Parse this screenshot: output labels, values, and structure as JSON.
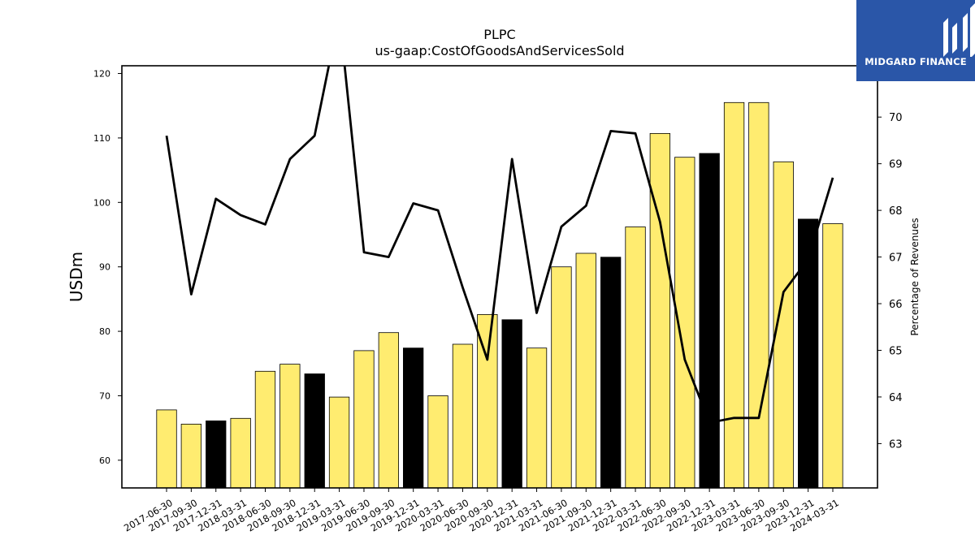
{
  "logo": {
    "text": "MIDGARD FINANCE"
  },
  "chart_data": {
    "type": "bar",
    "title": "PLPC",
    "subtitle": "us-gaap:CostOfGoodsAndServicesSold",
    "ylabel": "USDm",
    "y2label": "Percentage of Revenues",
    "ylim": [
      55.7,
      121.2
    ],
    "y2lim": [
      62.05,
      71.1
    ],
    "yticks": [
      60,
      70,
      80,
      90,
      100,
      110,
      120
    ],
    "y2ticks": [
      63,
      64,
      65,
      66,
      67,
      68,
      69,
      70
    ],
    "categories": [
      "2017-06-30",
      "2017-09-30",
      "2017-12-31",
      "2018-03-31",
      "2018-06-30",
      "2018-09-30",
      "2018-12-31",
      "2019-03-31",
      "2019-06-30",
      "2019-09-30",
      "2019-12-31",
      "2020-03-31",
      "2020-06-30",
      "2020-09-30",
      "2020-12-31",
      "2021-03-31",
      "2021-06-30",
      "2021-09-30",
      "2021-12-31",
      "2022-03-31",
      "2022-06-30",
      "2022-09-30",
      "2022-12-31",
      "2023-03-31",
      "2023-06-30",
      "2023-09-30",
      "2023-12-31",
      "2024-03-31"
    ],
    "series": [
      {
        "type": "bar",
        "values": [
          67.8,
          65.6,
          66.1,
          66.5,
          73.8,
          74.9,
          73.4,
          69.8,
          77.0,
          79.8,
          77.4,
          70.0,
          78.0,
          82.6,
          81.8,
          77.4,
          90.0,
          92.1,
          91.5,
          96.2,
          110.7,
          107.0,
          107.6,
          115.5,
          115.5,
          106.3,
          97.4,
          96.7
        ],
        "highlight": [
          false,
          false,
          true,
          false,
          false,
          false,
          true,
          false,
          false,
          false,
          true,
          false,
          false,
          false,
          true,
          false,
          false,
          false,
          true,
          false,
          false,
          false,
          true,
          false,
          false,
          false,
          true,
          false
        ]
      },
      {
        "type": "line",
        "axis": "right",
        "values": [
          69.6,
          66.2,
          68.25,
          67.9,
          67.7,
          69.1,
          69.6,
          72.2,
          67.1,
          67.0,
          68.15,
          68.0,
          66.35,
          64.8,
          69.1,
          65.8,
          67.65,
          68.1,
          69.7,
          69.65,
          67.75,
          64.8,
          63.45,
          63.55,
          63.55,
          66.25,
          66.95,
          68.7
        ]
      }
    ],
    "colors": {
      "bar": "#ffec70",
      "bar_highlight": "#000000",
      "line": "#000000"
    }
  }
}
